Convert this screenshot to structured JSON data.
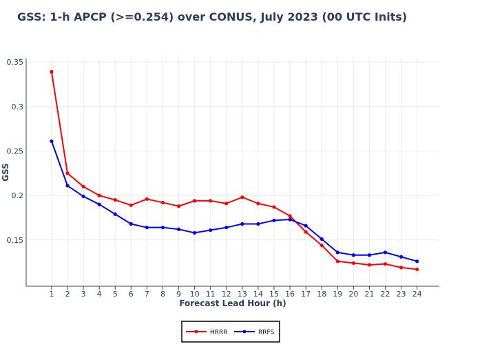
{
  "chart_data": {
    "type": "line",
    "title": "GSS: 1-h APCP (>=0.254) over CONUS, July 2023 (00 UTC Inits)",
    "xlabel": "Forecast Lead Hour (h)",
    "ylabel": "GSS",
    "x": [
      1,
      2,
      3,
      4,
      5,
      6,
      7,
      8,
      9,
      10,
      11,
      12,
      13,
      14,
      15,
      16,
      17,
      18,
      19,
      20,
      21,
      22,
      23,
      24
    ],
    "x_tick_labels": [
      "1",
      "2",
      "3",
      "4",
      "5",
      "6",
      "7",
      "8",
      "9",
      "10",
      "11",
      "12",
      "13",
      "14",
      "15",
      "16",
      "17",
      "18",
      "19",
      "20",
      "21",
      "22",
      "23",
      "24"
    ],
    "xlim": [
      -0.6,
      25.4
    ],
    "ylim": [
      0.098,
      0.354
    ],
    "y_ticks": [
      0.15,
      0.2,
      0.25,
      0.3,
      0.35
    ],
    "y_tick_labels": [
      "0.15",
      "0.2",
      "0.25",
      "0.3",
      "0.35"
    ],
    "grid": true,
    "legend_position": "bottom-center",
    "series": [
      {
        "name": "HRRR",
        "color": "#ff0000",
        "values": [
          0.339,
          0.225,
          0.21,
          0.2,
          0.195,
          0.189,
          0.196,
          0.192,
          0.188,
          0.194,
          0.194,
          0.191,
          0.198,
          0.191,
          0.187,
          0.177,
          0.159,
          0.144,
          0.126,
          0.124,
          0.122,
          0.123,
          0.119,
          0.117
        ]
      },
      {
        "name": "RRFS",
        "color": "#0000ff",
        "values": [
          0.261,
          0.211,
          0.199,
          0.19,
          0.179,
          0.168,
          0.164,
          0.164,
          0.162,
          0.158,
          0.161,
          0.164,
          0.168,
          0.168,
          0.172,
          0.173,
          0.166,
          0.151,
          0.136,
          0.133,
          0.133,
          0.136,
          0.131,
          0.126
        ]
      }
    ]
  }
}
